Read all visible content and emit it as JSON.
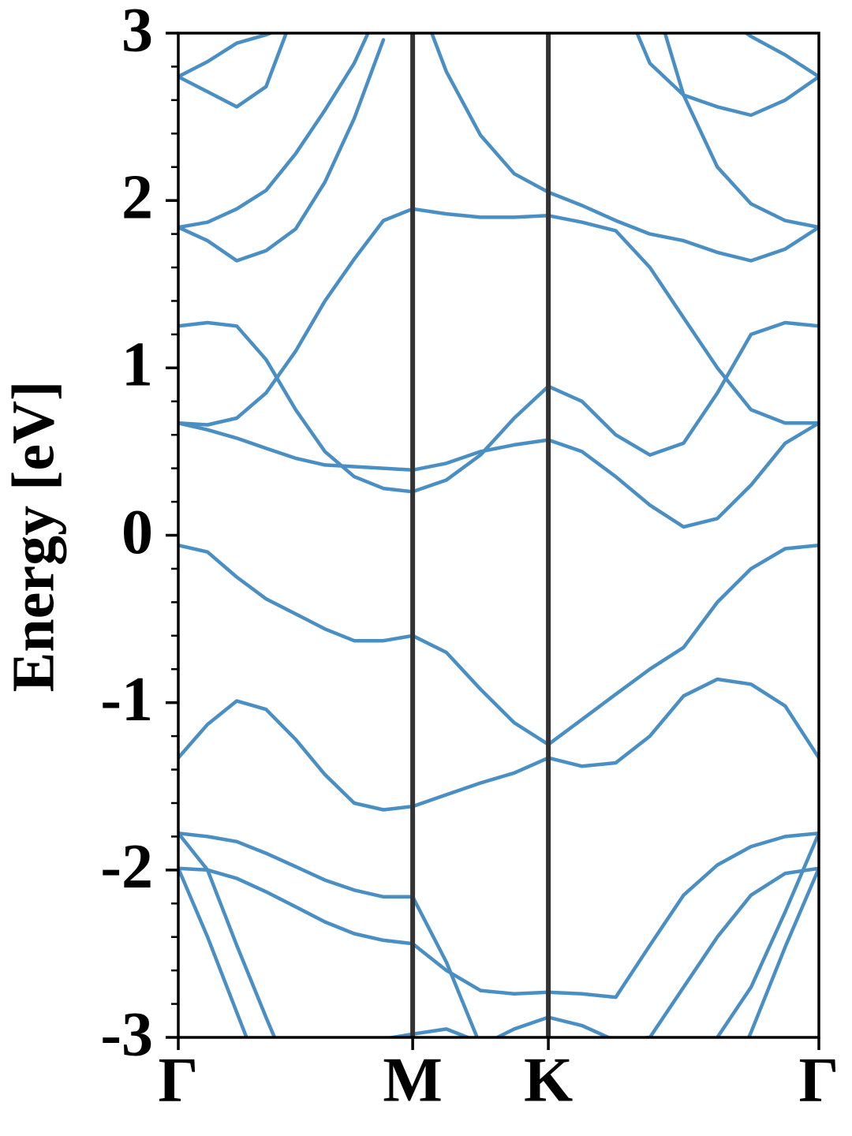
{
  "chart_data": {
    "type": "line",
    "ylabel": "Energy [eV]",
    "color": "#4a8fc4",
    "x": [
      0,
      0.072,
      0.144,
      0.216,
      0.289,
      0.361,
      0.433,
      0.505,
      0.577,
      0.66,
      0.744,
      0.827,
      0.911,
      0.994,
      1.077,
      1.161,
      1.244,
      1.327,
      1.41,
      1.494,
      1.577
    ],
    "series": [
      {
        "values": [
          -1.99,
          -2.4,
          -2.85,
          -3.3,
          null,
          null,
          null,
          null,
          null,
          null,
          null,
          null,
          null,
          null,
          null,
          null,
          null,
          -3.4,
          -2.97,
          -2.46,
          -1.99
        ]
      },
      {
        "values": [
          -1.78,
          -2.0,
          -2.45,
          -2.88,
          -3.3,
          null,
          null,
          null,
          null,
          null,
          null,
          null,
          null,
          null,
          null,
          null,
          -3.3,
          -3.0,
          -2.7,
          -2.25,
          -1.78
        ]
      },
      {
        "values": [
          -1.99,
          -2.0,
          -2.05,
          -2.13,
          -2.22,
          -2.31,
          -2.38,
          -2.42,
          -2.44,
          -2.6,
          -2.72,
          -2.74,
          -2.73,
          -2.74,
          -2.76,
          -2.45,
          -2.15,
          -1.97,
          -1.86,
          -1.8,
          -1.78
        ]
      },
      {
        "values": [
          -1.78,
          -1.8,
          -1.83,
          -1.9,
          -1.98,
          -2.06,
          -2.12,
          -2.16,
          -2.16,
          -2.55,
          -3.05,
          -2.95,
          -2.88,
          -2.93,
          -3.02,
          -3.0,
          -2.7,
          -2.4,
          -2.15,
          -2.02,
          -1.99
        ]
      },
      {
        "values": [
          null,
          null,
          null,
          null,
          null,
          null,
          null,
          -3.01,
          -2.98,
          -2.95,
          -3.03,
          null,
          null,
          null,
          null,
          null,
          null,
          null,
          null,
          null,
          null
        ]
      },
      {
        "values": [
          -1.33,
          -1.13,
          -0.99,
          -1.04,
          -1.22,
          -1.43,
          -1.6,
          -1.64,
          -1.62,
          -1.55,
          -1.48,
          -1.42,
          -1.33,
          -1.38,
          -1.36,
          -1.2,
          -0.96,
          -0.86,
          -0.89,
          -1.02,
          -1.33
        ]
      },
      {
        "values": [
          -0.06,
          -0.1,
          -0.25,
          -0.38,
          -0.47,
          -0.56,
          -0.63,
          -0.63,
          -0.6,
          -0.7,
          -0.92,
          -1.12,
          -1.25,
          -1.1,
          -0.95,
          -0.8,
          -0.67,
          -0.4,
          -0.2,
          -0.08,
          -0.06
        ]
      },
      {
        "values": [
          0.67,
          0.63,
          0.58,
          0.52,
          0.46,
          0.42,
          0.41,
          0.4,
          0.39,
          0.43,
          0.5,
          0.54,
          0.57,
          0.5,
          0.35,
          0.18,
          0.05,
          0.1,
          0.3,
          0.55,
          0.67
        ]
      },
      {
        "values": [
          0.67,
          0.66,
          0.7,
          0.85,
          1.1,
          1.4,
          1.65,
          1.88,
          1.95,
          1.92,
          1.9,
          1.9,
          1.91,
          1.87,
          1.82,
          1.6,
          1.3,
          1.0,
          0.75,
          0.67,
          0.67
        ]
      },
      {
        "values": [
          1.25,
          1.27,
          1.25,
          1.05,
          0.75,
          0.5,
          0.35,
          0.28,
          0.26,
          0.33,
          0.48,
          0.7,
          0.89,
          0.8,
          0.6,
          0.48,
          0.55,
          0.85,
          1.2,
          1.27,
          1.25
        ]
      },
      {
        "values": [
          1.84,
          1.76,
          1.64,
          1.7,
          1.83,
          2.11,
          2.49,
          2.96,
          null,
          null,
          null,
          null,
          null,
          null,
          null,
          null,
          null,
          null,
          null,
          null,
          null
        ]
      },
      {
        "values": [
          1.84,
          1.87,
          1.95,
          2.06,
          2.28,
          2.54,
          2.82,
          3.2,
          null,
          null,
          null,
          null,
          null,
          null,
          null,
          null,
          null,
          null,
          null,
          null,
          null
        ]
      },
      {
        "values": [
          null,
          null,
          null,
          null,
          null,
          null,
          null,
          null,
          3.3,
          2.77,
          2.39,
          2.16,
          2.05,
          1.97,
          1.88,
          1.8,
          1.76,
          1.69,
          1.64,
          1.71,
          1.84
        ]
      },
      {
        "values": [
          2.74,
          2.65,
          2.56,
          2.68,
          3.15,
          null,
          null,
          null,
          null,
          null,
          null,
          null,
          null,
          null,
          3.3,
          2.82,
          2.63,
          2.56,
          2.51,
          2.6,
          2.74
        ]
      },
      {
        "values": [
          2.74,
          2.83,
          2.94,
          2.99,
          3.06,
          null,
          null,
          null,
          null,
          null,
          null,
          null,
          null,
          null,
          null,
          null,
          null,
          3.12,
          2.98,
          2.87,
          2.74
        ]
      },
      {
        "values": [
          null,
          null,
          null,
          null,
          null,
          null,
          null,
          null,
          null,
          null,
          null,
          null,
          null,
          null,
          null,
          3.3,
          2.63,
          2.2,
          1.98,
          1.88,
          1.84
        ]
      }
    ],
    "xlim": [
      0,
      1.577
    ],
    "xticks": [
      {
        "value": 0,
        "label": "Γ"
      },
      {
        "value": 0.577,
        "label": "M"
      },
      {
        "value": 0.911,
        "label": "K"
      },
      {
        "value": 1.577,
        "label": "Γ"
      }
    ],
    "ylim": [
      -3,
      3
    ],
    "yticks": [
      -3,
      -2,
      -1,
      0,
      1,
      2,
      3
    ],
    "yminorticks": [
      -2.8,
      -2.6,
      -2.4,
      -2.2,
      -1.8,
      -1.6,
      -1.4,
      -1.2,
      -0.8,
      -0.6,
      -0.4,
      -0.2,
      0.2,
      0.4,
      0.6,
      0.8,
      1.2,
      1.4,
      1.6,
      1.8,
      2.2,
      2.4,
      2.6,
      2.8
    ],
    "symmetry_lines": true,
    "grid": false
  }
}
